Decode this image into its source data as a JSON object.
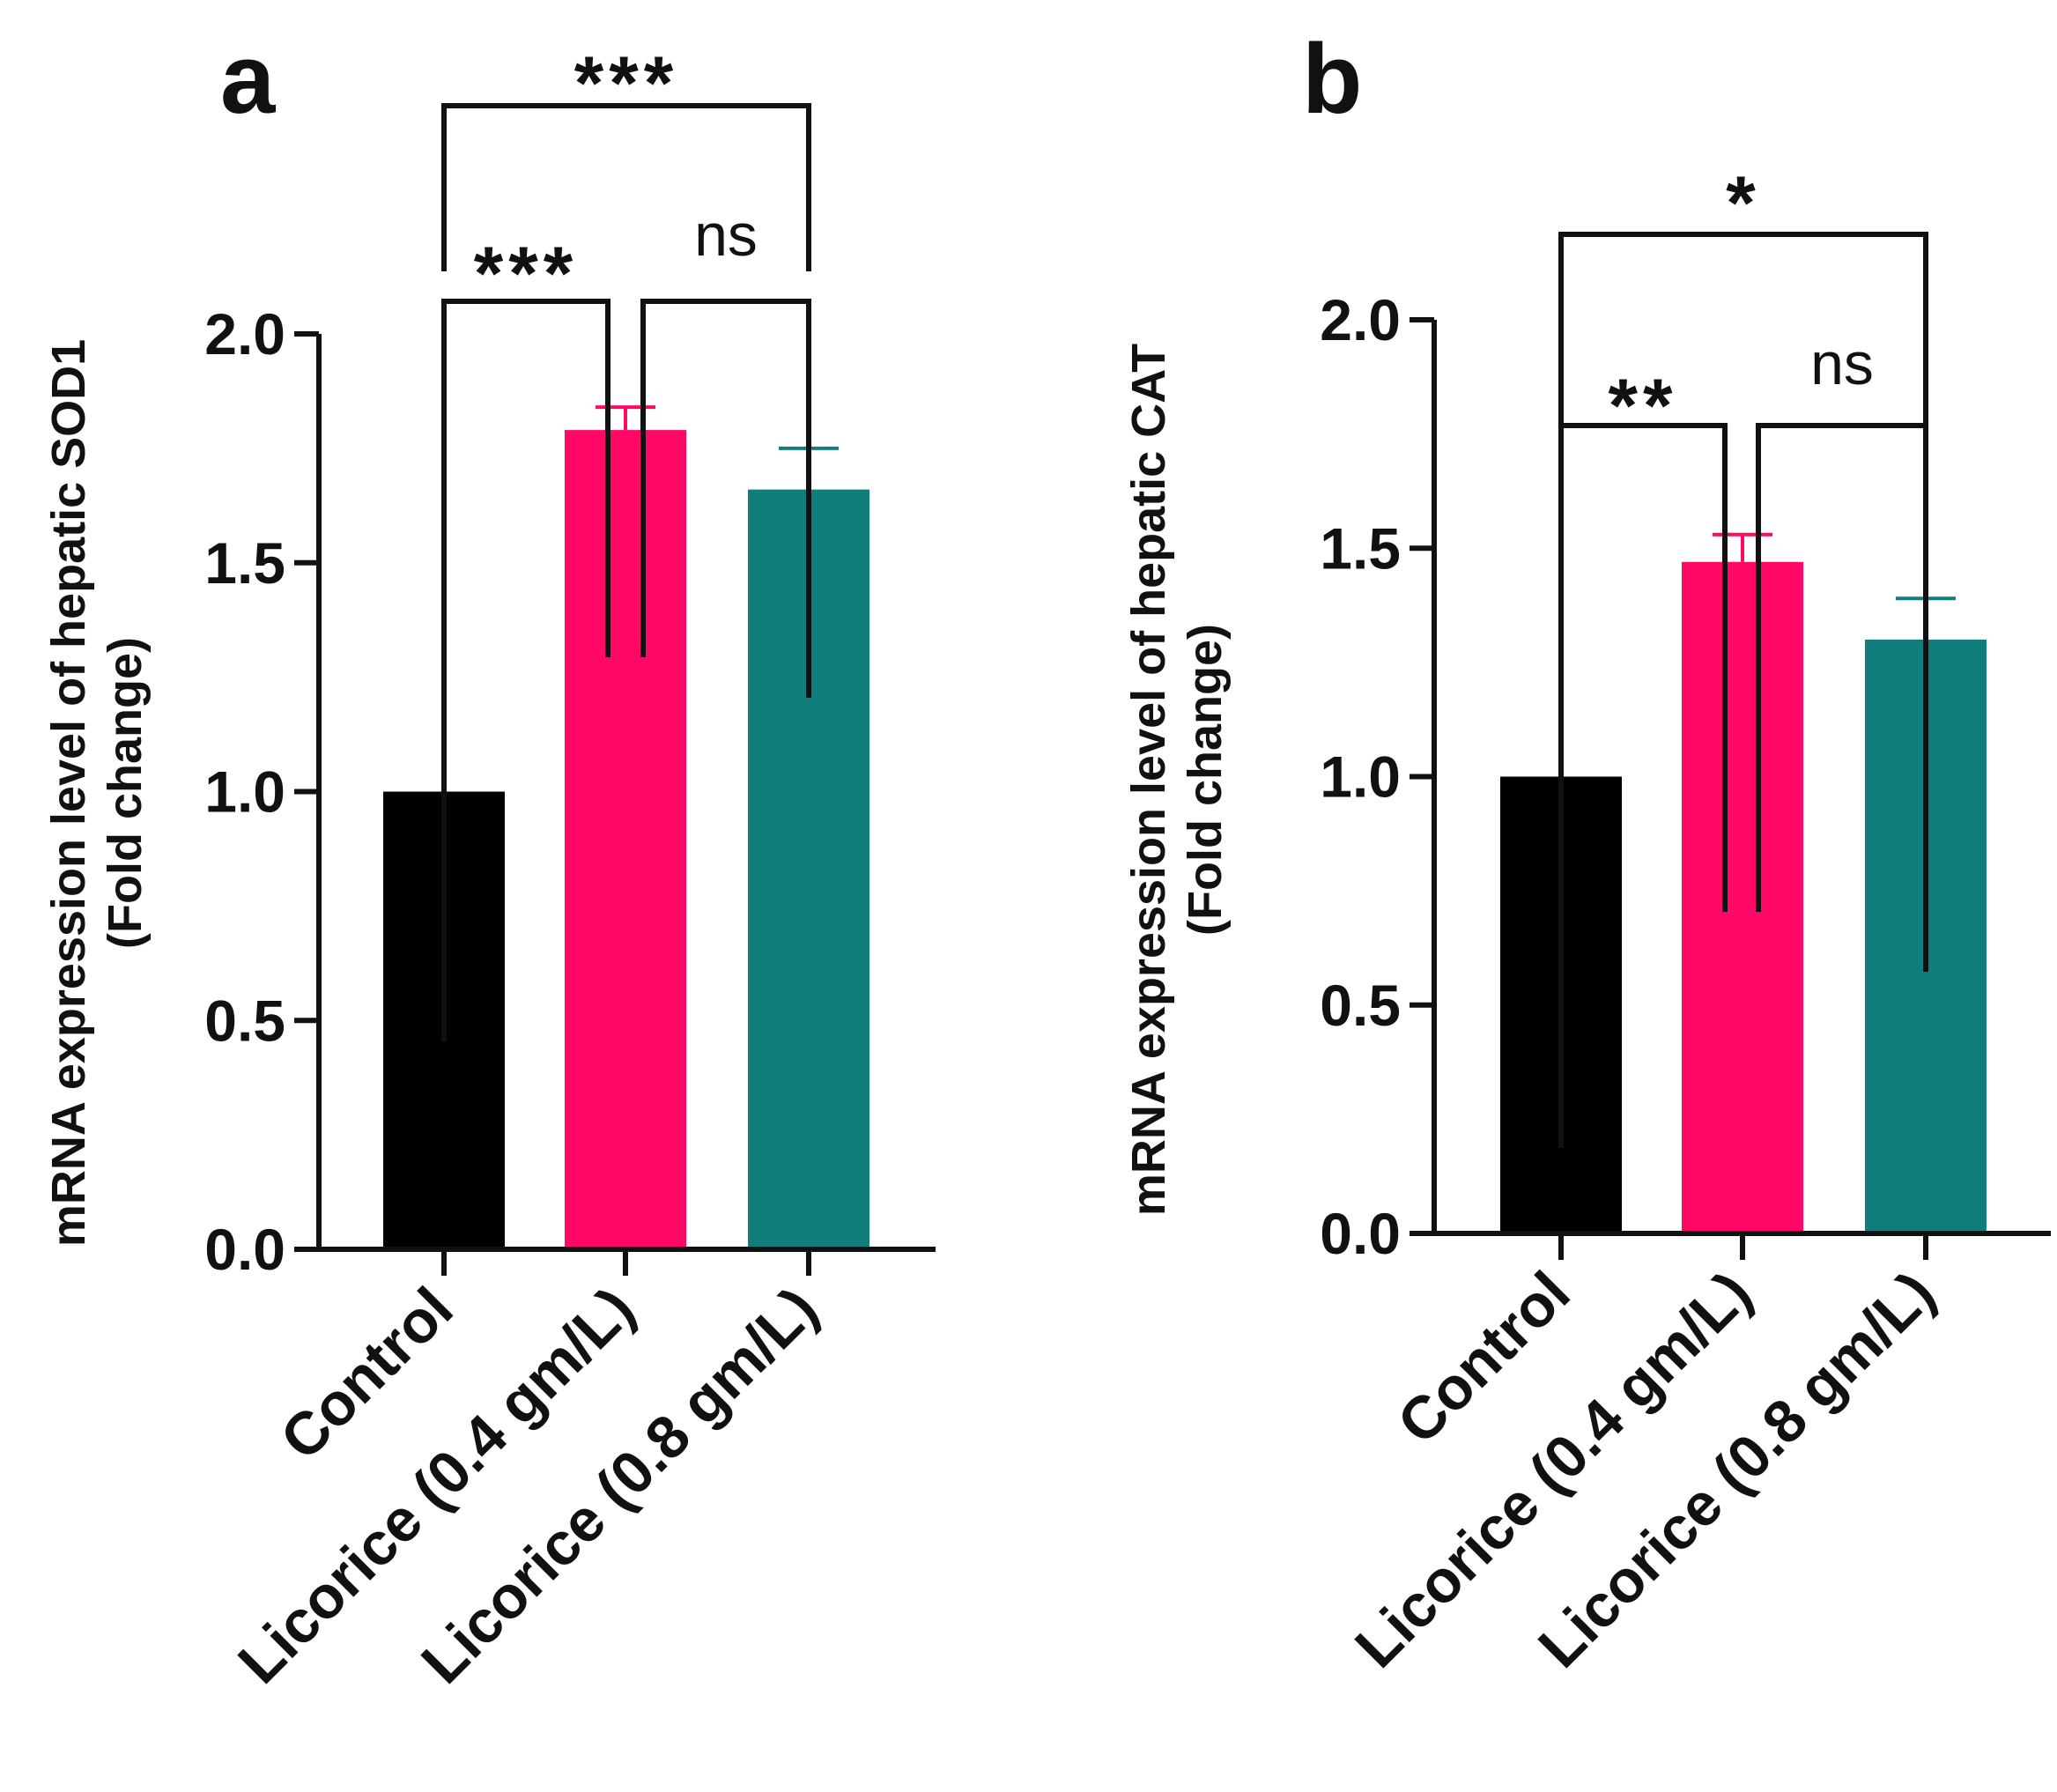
{
  "figure": {
    "panels": [
      {
        "letter": "a",
        "ylabel_line1": "mRNA expression level of  hepatic SOD1",
        "ylabel_line2": "(Fold change)"
      },
      {
        "letter": "b",
        "ylabel_line1": "mRNA expression level of  hepatic CAT",
        "ylabel_line2": "(Fold change)"
      }
    ]
  },
  "colors": {
    "axis": "#111111",
    "control": "#000000",
    "licorice_04": "#ff0866",
    "licorice_08": "#127e7b"
  },
  "chart_data": [
    {
      "type": "bar",
      "panel": "a",
      "ylabel": "mRNA expression level of  hepatic SOD1 (Fold change)",
      "categories": [
        "Control",
        "Licorice (0.4 gm/L)",
        "Licorice (0.8 gm/L)"
      ],
      "values": [
        1.0,
        1.79,
        1.66
      ],
      "errors": [
        0.0,
        0.05,
        0.09
      ],
      "ylim": [
        0,
        2.0
      ],
      "yticks": [
        "0.0",
        "0.5",
        "1.0",
        "1.5",
        "2.0"
      ],
      "comparisons": [
        {
          "from": 0,
          "to": 2,
          "label": "***"
        },
        {
          "from": 0,
          "to": 1,
          "label": "***"
        },
        {
          "from": 1,
          "to": 2,
          "label": "ns"
        }
      ]
    },
    {
      "type": "bar",
      "panel": "b",
      "ylabel": "mRNA expression level of  hepatic CAT (Fold change)",
      "categories": [
        "Control",
        "Licorice (0.4 gm/L)",
        "Licorice (0.8 gm/L)"
      ],
      "values": [
        1.0,
        1.47,
        1.3
      ],
      "errors": [
        0.0,
        0.06,
        0.09
      ],
      "ylim": [
        0,
        2.0
      ],
      "yticks": [
        "0.0",
        "0.5",
        "1.0",
        "1.5",
        "2.0"
      ],
      "comparisons": [
        {
          "from": 0,
          "to": 2,
          "label": "*"
        },
        {
          "from": 0,
          "to": 1,
          "label": "**"
        },
        {
          "from": 1,
          "to": 2,
          "label": "ns"
        }
      ]
    }
  ]
}
